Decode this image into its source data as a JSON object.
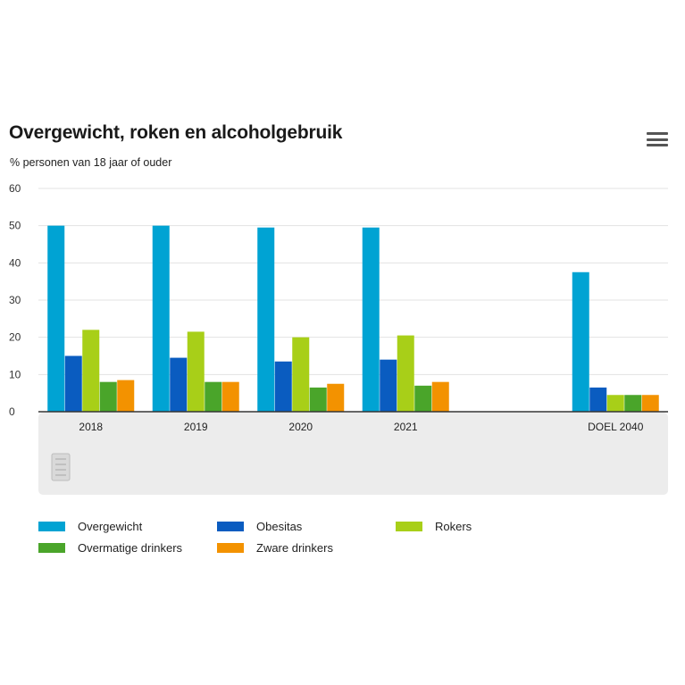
{
  "header": {
    "title": "Overgewicht, roken en alcoholgebruik",
    "subtitle": "% personen van 18 jaar of ouder",
    "menu_icon": "hamburger-menu-icon"
  },
  "chart_data": {
    "type": "bar",
    "title": "Overgewicht, roken en alcoholgebruik",
    "subtitle": "% personen van 18 jaar of ouder",
    "categories": [
      "2018",
      "2019",
      "2020",
      "2021",
      "",
      "DOEL 2040"
    ],
    "ylim": [
      0,
      60
    ],
    "yticks": [
      "0",
      "10",
      "20",
      "30",
      "40",
      "50",
      "60"
    ],
    "grid": true,
    "legend_position": "bottom",
    "series": [
      {
        "name": "Overgewicht",
        "color": "#00a3d3",
        "values": [
          50,
          50,
          49.5,
          49.5,
          null,
          37.5
        ]
      },
      {
        "name": "Obesitas",
        "color": "#0a5cc0",
        "values": [
          15,
          14.5,
          13.5,
          14,
          null,
          6.5
        ]
      },
      {
        "name": "Rokers",
        "color": "#a8cf18",
        "values": [
          22,
          21.5,
          20,
          20.5,
          null,
          4.5
        ]
      },
      {
        "name": "Overmatige drinkers",
        "color": "#4aa52a",
        "values": [
          8,
          8,
          6.5,
          7,
          null,
          4.5
        ]
      },
      {
        "name": "Zware drinkers",
        "color": "#f39200",
        "values": [
          8.5,
          8,
          7.5,
          8,
          null,
          4.5
        ]
      }
    ]
  }
}
